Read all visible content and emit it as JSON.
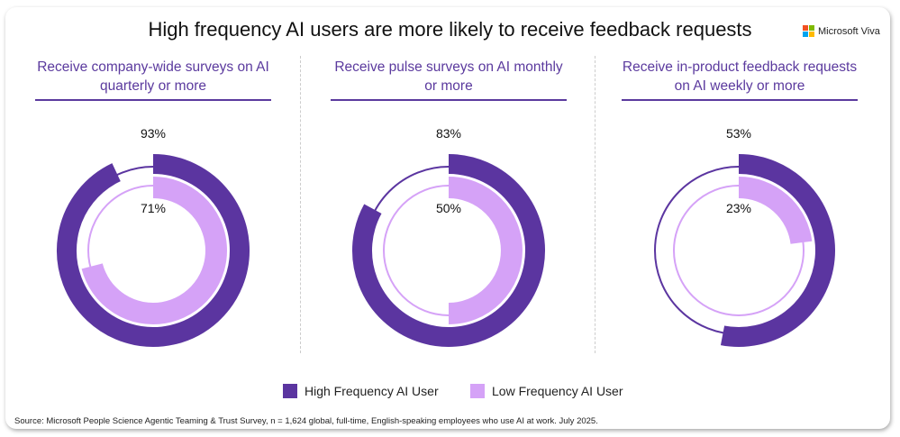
{
  "title": "High frequency AI users are more likely to receive feedback requests",
  "logo": "Microsoft Viva",
  "colors": {
    "high": "#5b35a0",
    "low": "#d5a2f7"
  },
  "legend": {
    "high": "High Frequency AI User",
    "low": "Low Frequency AI User"
  },
  "source": "Source: Microsoft People Science Agentic Teaming & Trust Survey, n = 1,624 global, full-time, English-speaking employees who use AI at work. July 2025.",
  "chart_data": [
    {
      "type": "donut",
      "title": "Receive company-wide surveys on AI quarterly or more",
      "series": [
        {
          "name": "High Frequency AI User",
          "value": 93,
          "label": "93%"
        },
        {
          "name": "Low Frequency AI User",
          "value": 71,
          "label": "71%"
        }
      ]
    },
    {
      "type": "donut",
      "title": "Receive pulse surveys on AI monthly or more",
      "series": [
        {
          "name": "High Frequency AI User",
          "value": 83,
          "label": "83%"
        },
        {
          "name": "Low Frequency AI User",
          "value": 50,
          "label": "50%"
        }
      ]
    },
    {
      "type": "donut",
      "title": "Receive in-product feedback requests on AI weekly or more",
      "series": [
        {
          "name": "High Frequency AI User",
          "value": 53,
          "label": "53%"
        },
        {
          "name": "Low Frequency AI User",
          "value": 23,
          "label": "23%"
        }
      ]
    }
  ]
}
